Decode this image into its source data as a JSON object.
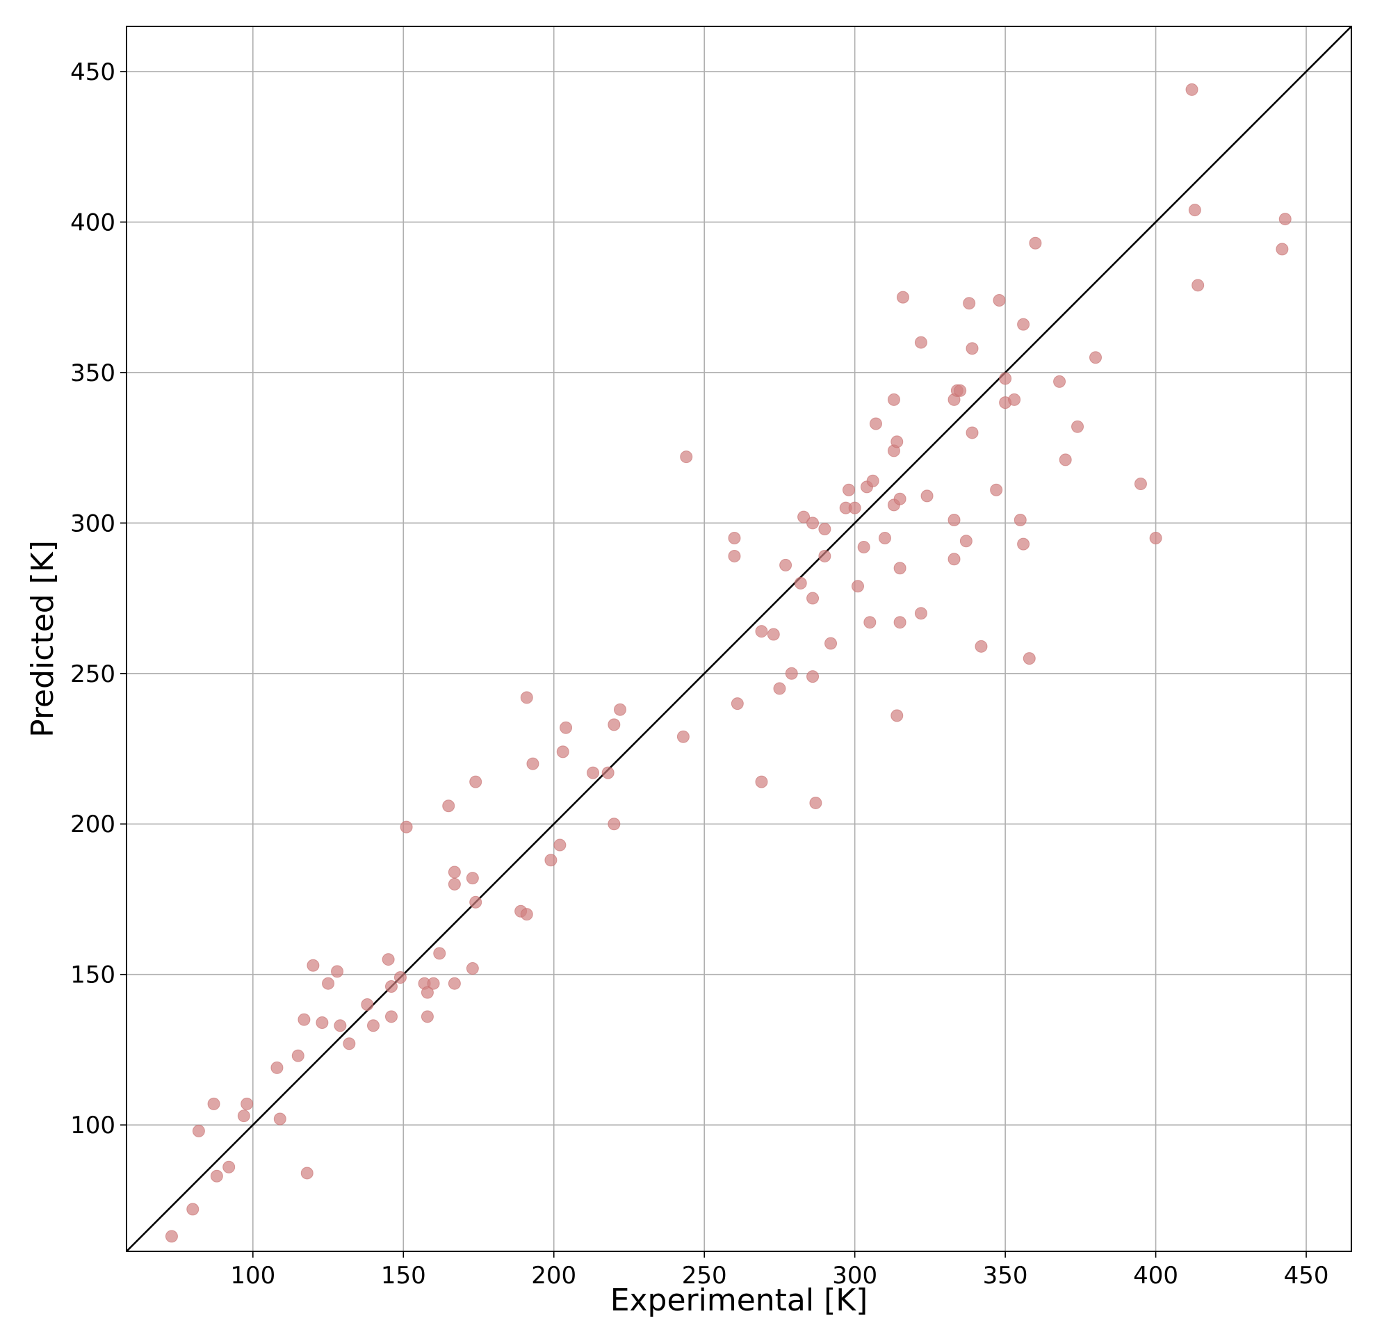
{
  "chart_data": {
    "type": "scatter",
    "title": "",
    "xlabel": "Experimental [K]",
    "ylabel": "Predicted [K]",
    "xlim": [
      58,
      465
    ],
    "ylim": [
      58,
      465
    ],
    "x_ticks": [
      100,
      150,
      200,
      250,
      300,
      350,
      400,
      450
    ],
    "y_ticks": [
      100,
      150,
      200,
      250,
      300,
      350,
      400,
      450
    ],
    "x_tick_labels": [
      "100",
      "150",
      "200",
      "250",
      "300",
      "350",
      "400",
      "450"
    ],
    "y_tick_labels": [
      "100",
      "150",
      "200",
      "250",
      "300",
      "350",
      "400",
      "450"
    ],
    "grid": true,
    "reference_line": {
      "type": "identity",
      "color": "#000000"
    },
    "marker_color": "#d08080",
    "series": [
      {
        "points": [
          [
            73,
            63
          ],
          [
            80,
            72
          ],
          [
            82,
            98
          ],
          [
            87,
            107
          ],
          [
            88,
            83
          ],
          [
            92,
            86
          ],
          [
            97,
            103
          ],
          [
            98,
            107
          ],
          [
            108,
            119
          ],
          [
            109,
            102
          ],
          [
            115,
            123
          ],
          [
            117,
            135
          ],
          [
            118,
            84
          ],
          [
            120,
            153
          ],
          [
            123,
            134
          ],
          [
            125,
            147
          ],
          [
            128,
            151
          ],
          [
            129,
            133
          ],
          [
            132,
            127
          ],
          [
            138,
            140
          ],
          [
            140,
            133
          ],
          [
            145,
            155
          ],
          [
            146,
            146
          ],
          [
            146,
            136
          ],
          [
            149,
            149
          ],
          [
            151,
            199
          ],
          [
            157,
            147
          ],
          [
            158,
            144
          ],
          [
            158,
            136
          ],
          [
            160,
            147
          ],
          [
            162,
            157
          ],
          [
            165,
            206
          ],
          [
            167,
            147
          ],
          [
            167,
            184
          ],
          [
            167,
            180
          ],
          [
            173,
            182
          ],
          [
            173,
            152
          ],
          [
            174,
            174
          ],
          [
            174,
            214
          ],
          [
            189,
            171
          ],
          [
            191,
            170
          ],
          [
            191,
            242
          ],
          [
            193,
            220
          ],
          [
            199,
            188
          ],
          [
            202,
            193
          ],
          [
            203,
            224
          ],
          [
            204,
            232
          ],
          [
            213,
            217
          ],
          [
            218,
            217
          ],
          [
            220,
            233
          ],
          [
            220,
            200
          ],
          [
            222,
            238
          ],
          [
            243,
            229
          ],
          [
            244,
            322
          ],
          [
            260,
            295
          ],
          [
            260,
            289
          ],
          [
            261,
            240
          ],
          [
            269,
            214
          ],
          [
            269,
            264
          ],
          [
            273,
            263
          ],
          [
            275,
            245
          ],
          [
            277,
            286
          ],
          [
            279,
            250
          ],
          [
            282,
            280
          ],
          [
            283,
            302
          ],
          [
            286,
            300
          ],
          [
            286,
            275
          ],
          [
            286,
            249
          ],
          [
            287,
            207
          ],
          [
            290,
            298
          ],
          [
            290,
            289
          ],
          [
            292,
            260
          ],
          [
            297,
            305
          ],
          [
            298,
            311
          ],
          [
            300,
            305
          ],
          [
            301,
            279
          ],
          [
            303,
            292
          ],
          [
            304,
            312
          ],
          [
            305,
            267
          ],
          [
            306,
            314
          ],
          [
            307,
            333
          ],
          [
            310,
            295
          ],
          [
            313,
            341
          ],
          [
            313,
            324
          ],
          [
            313,
            306
          ],
          [
            314,
            327
          ],
          [
            314,
            236
          ],
          [
            315,
            308
          ],
          [
            315,
            285
          ],
          [
            315,
            267
          ],
          [
            316,
            375
          ],
          [
            322,
            360
          ],
          [
            322,
            270
          ],
          [
            324,
            309
          ],
          [
            333,
            341
          ],
          [
            333,
            301
          ],
          [
            333,
            288
          ],
          [
            334,
            344
          ],
          [
            335,
            344
          ],
          [
            337,
            294
          ],
          [
            338,
            373
          ],
          [
            339,
            358
          ],
          [
            339,
            330
          ],
          [
            342,
            259
          ],
          [
            347,
            311
          ],
          [
            348,
            374
          ],
          [
            350,
            348
          ],
          [
            350,
            340
          ],
          [
            353,
            341
          ],
          [
            355,
            301
          ],
          [
            356,
            366
          ],
          [
            356,
            293
          ],
          [
            358,
            255
          ],
          [
            360,
            393
          ],
          [
            368,
            347
          ],
          [
            370,
            321
          ],
          [
            374,
            332
          ],
          [
            380,
            355
          ],
          [
            395,
            313
          ],
          [
            400,
            295
          ],
          [
            412,
            444
          ],
          [
            413,
            404
          ],
          [
            414,
            379
          ],
          [
            442,
            391
          ],
          [
            443,
            401
          ]
        ]
      }
    ]
  }
}
